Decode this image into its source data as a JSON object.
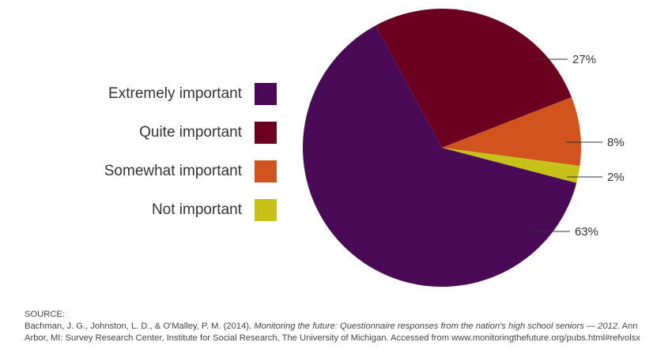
{
  "chart_data": {
    "type": "pie",
    "categories": [
      "Extremely important",
      "Quite important",
      "Somewhat important",
      "Not important"
    ],
    "values": [
      63,
      27,
      8,
      2
    ],
    "labels": [
      "63%",
      "27%",
      "8%",
      "2%"
    ],
    "colors": [
      "#4a0a55",
      "#6b0020",
      "#d1531d",
      "#c6c21a"
    ],
    "legend_position": "left"
  },
  "source": {
    "heading": "SOURCE:",
    "authors": "Bachman, J. G., Johnston, L. D., & O'Malley, P. M. (2014). ",
    "title": "Monitoring the future: Questionnaire responses from the nation's high school seniors — 2012.",
    "rest": " Ann Arbor, MI: Survey Research Center, Institute for Social Research, The University of Michigan. Accessed from www.monitoringthefuture.org/pubs.html#refvolsx"
  }
}
